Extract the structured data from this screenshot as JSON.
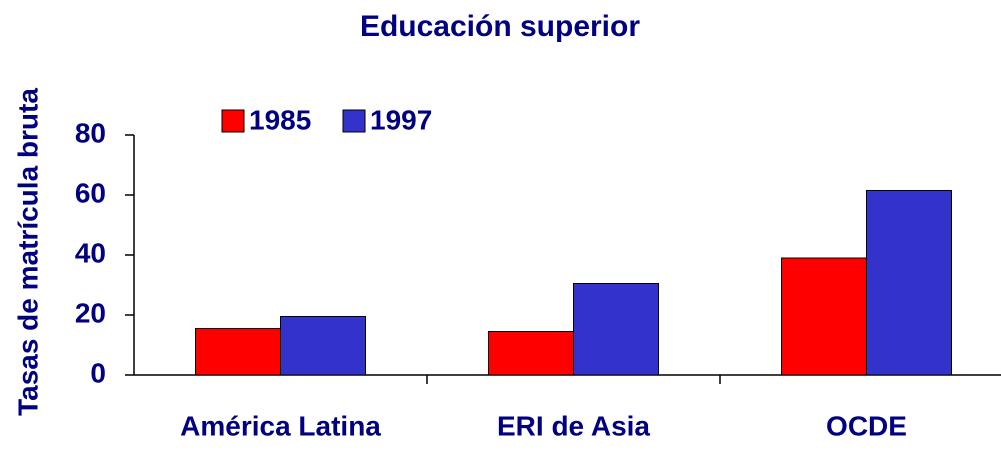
{
  "chart_data": {
    "type": "bar",
    "title": "Educación superior",
    "y_label": "Tasas de matrícula bruta",
    "categories": [
      "América Latina",
      "ERI de Asia",
      "OCDE"
    ],
    "series": [
      {
        "name": "1985",
        "color": "#ff0000",
        "values": [
          15.5,
          14.5,
          39
        ]
      },
      {
        "name": "1997",
        "color": "#3333cc",
        "values": [
          19.5,
          30.5,
          61.5
        ]
      }
    ],
    "ylim": [
      0,
      80
    ],
    "yticks": [
      0,
      20,
      40,
      60,
      80
    ],
    "grid": false,
    "legend": "top"
  }
}
